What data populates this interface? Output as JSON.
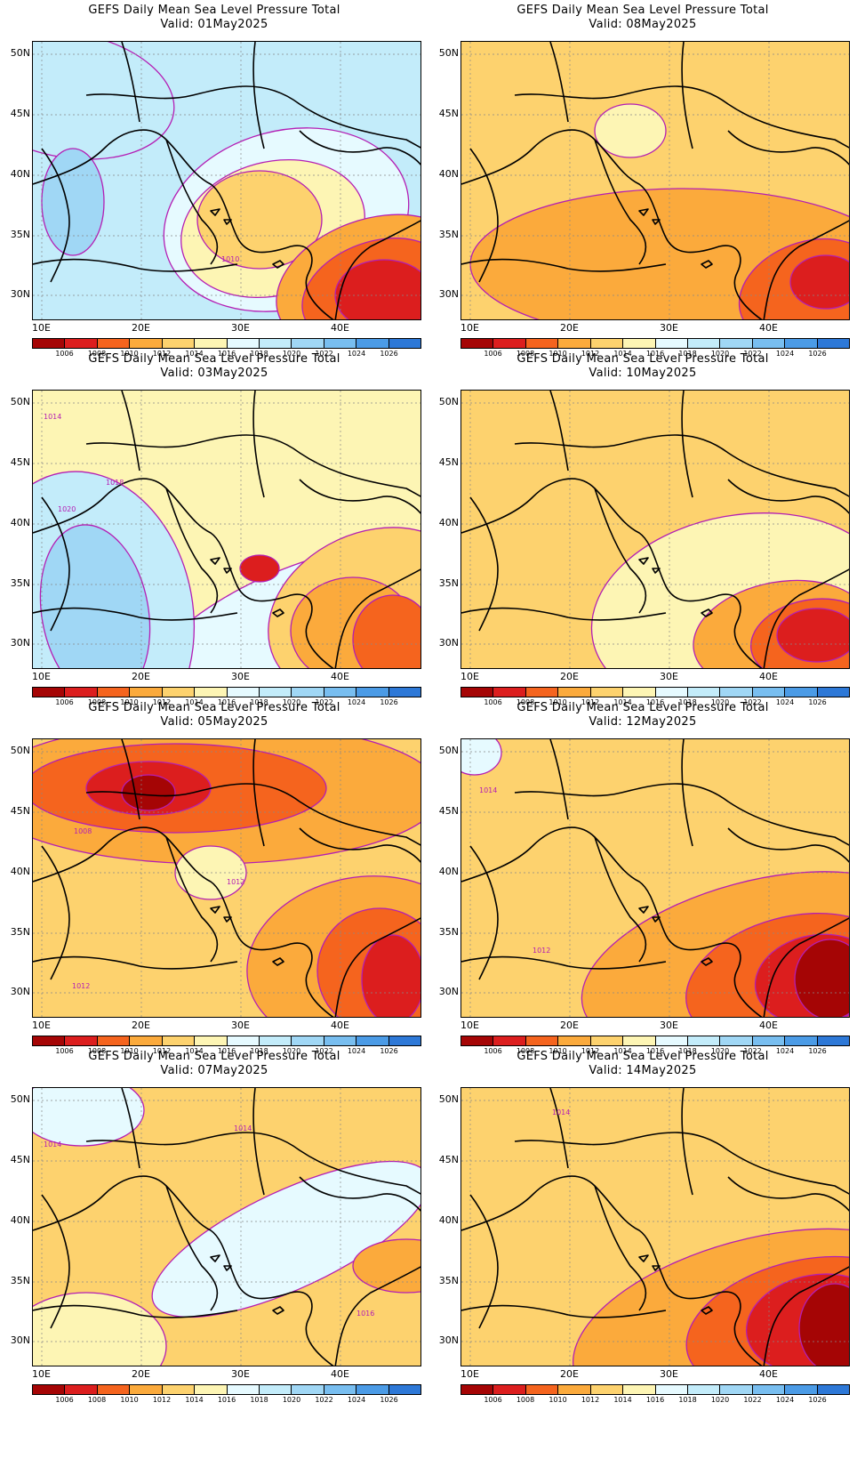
{
  "title_text": "GEFS Daily Mean Sea Level Pressure Total",
  "lat_labels": [
    "50N",
    "45N",
    "40N",
    "35N",
    "30N"
  ],
  "lon_labels": [
    "10E",
    "20E",
    "30E",
    "40E"
  ],
  "colorbar": {
    "labels": [
      "1006",
      "1008",
      "1010",
      "1012",
      "1014",
      "1016",
      "1018",
      "1020",
      "1022",
      "1024",
      "1026"
    ],
    "colors": [
      "#a50505",
      "#dc1e1e",
      "#f5641e",
      "#fbaa3c",
      "#fdd26e",
      "#fdf5b4",
      "#e6faff",
      "#c3ecfa",
      "#a0d7f5",
      "#78bef0",
      "#4b9be6",
      "#2d78d7"
    ]
  },
  "panels": [
    {
      "title": "GEFS Daily Mean Sea Level Pressure Total",
      "valid": "Valid: 01May2025",
      "base": 7,
      "labels": [
        {
          "text": "1010"
        }
      ],
      "blobs": [
        {
          "cls": 6
        },
        {
          "cls": 5
        },
        {
          "cls": 4
        },
        {
          "cls": 3
        },
        {
          "cls": 2
        },
        {
          "cls": 1
        },
        {
          "cls": 7
        },
        {
          "cls": 8
        }
      ]
    },
    {
      "title": "GEFS Daily Mean Sea Level Pressure Total",
      "valid": "Valid: 08May2025",
      "base": 4,
      "labels": [],
      "blobs": [
        {
          "cls": 3
        },
        {
          "cls": 5
        },
        {
          "cls": 2
        },
        {
          "cls": 1
        }
      ]
    },
    {
      "title": "GEFS Daily Mean Sea Level Pressure Total",
      "valid": "Valid: 03May2025",
      "base": 5,
      "labels": [
        {
          "text": "1014"
        },
        {
          "text": "1018"
        },
        {
          "text": "1020"
        }
      ],
      "blobs": [
        {
          "cls": 6
        },
        {
          "cls": 7
        },
        {
          "cls": 8
        },
        {
          "cls": 4
        },
        {
          "cls": 3
        },
        {
          "cls": 2
        },
        {
          "cls": 1
        }
      ]
    },
    {
      "title": "GEFS Daily Mean Sea Level Pressure Total",
      "valid": "Valid: 10May2025",
      "base": 4,
      "labels": [],
      "blobs": [
        {
          "cls": 5
        },
        {
          "cls": 3
        },
        {
          "cls": 2
        },
        {
          "cls": 1
        }
      ]
    },
    {
      "title": "GEFS Daily Mean Sea Level Pressure Total",
      "valid": "Valid: 05May2025",
      "base": 4,
      "labels": [
        {
          "text": "1008"
        },
        {
          "text": "1012"
        },
        {
          "text": "1012"
        }
      ],
      "blobs": [
        {
          "cls": 3
        },
        {
          "cls": 2
        },
        {
          "cls": 1
        },
        {
          "cls": 0
        },
        {
          "cls": 5
        },
        {
          "cls": 3
        },
        {
          "cls": 2
        },
        {
          "cls": 1
        }
      ]
    },
    {
      "title": "GEFS Daily Mean Sea Level Pressure Total",
      "valid": "Valid: 12May2025",
      "base": 4,
      "labels": [
        {
          "text": "1014"
        },
        {
          "text": "1012"
        }
      ],
      "blobs": [
        {
          "cls": 3
        },
        {
          "cls": 2
        },
        {
          "cls": 1
        },
        {
          "cls": 0
        },
        {
          "cls": 6
        }
      ]
    },
    {
      "title": "GEFS Daily Mean Sea Level Pressure Total",
      "valid": "Valid: 07May2025",
      "base": 4,
      "labels": [
        {
          "text": "1014"
        },
        {
          "text": "1014"
        },
        {
          "text": "1016"
        }
      ],
      "blobs": [
        {
          "cls": 5
        },
        {
          "cls": 6
        },
        {
          "cls": 3
        },
        {
          "cls": 6
        }
      ]
    },
    {
      "title": "GEFS Daily Mean Sea Level Pressure Total",
      "valid": "Valid: 14May2025",
      "base": 4,
      "labels": [
        {
          "text": "1014"
        }
      ],
      "blobs": [
        {
          "cls": 3
        },
        {
          "cls": 2
        },
        {
          "cls": 1
        },
        {
          "cls": 0
        }
      ]
    }
  ]
}
